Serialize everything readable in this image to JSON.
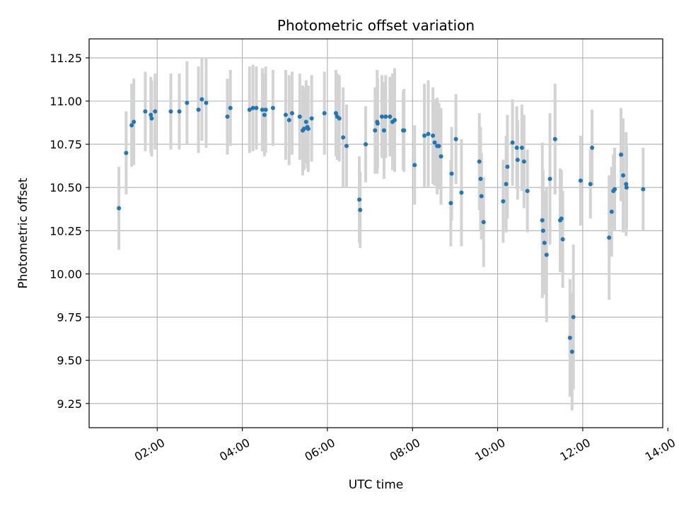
{
  "chart_data": {
    "type": "scatter",
    "title": "Photometric offset variation",
    "xlabel": "UTC time",
    "ylabel": "Photometric offset",
    "xlim": [
      0.4,
      13.88
    ],
    "ylim": [
      9.11,
      11.36
    ],
    "x_ticks": [
      2,
      4,
      6,
      8,
      10,
      12,
      14
    ],
    "x_tick_labels": [
      "02:00",
      "04:00",
      "06:00",
      "08:00",
      "10:00",
      "12:00",
      "14:00"
    ],
    "y_ticks": [
      9.25,
      9.5,
      9.75,
      10.0,
      10.25,
      10.5,
      10.75,
      11.0,
      11.25
    ],
    "y_tick_labels": [
      "9.25",
      "9.50",
      "9.75",
      "10.00",
      "10.25",
      "10.50",
      "10.75",
      "11.00",
      "11.25"
    ],
    "grid": true,
    "colors": {
      "point": "#1f77b4",
      "errorbar": "#d3d3d3",
      "grid": "#b0b0b0"
    },
    "series": [
      {
        "x": [
          1.1,
          1.27,
          1.4,
          1.45,
          1.72,
          1.85,
          1.87,
          1.95,
          2.32,
          2.52,
          2.7,
          2.97,
          3.05,
          3.15,
          3.65,
          3.72,
          4.17,
          4.25,
          4.33,
          4.47,
          4.52,
          4.55,
          4.72,
          5.02,
          5.1,
          5.17,
          5.35,
          5.42,
          5.45,
          5.5,
          5.53,
          5.55,
          5.63,
          5.93,
          6.2,
          6.23,
          6.28,
          6.37,
          6.45,
          6.75,
          6.77,
          6.9,
          7.12,
          7.17,
          7.18,
          7.28,
          7.33,
          7.37,
          7.47,
          7.53,
          7.58,
          7.78,
          7.8,
          8.05,
          8.28,
          8.37,
          8.48,
          8.52,
          8.58,
          8.62,
          8.67,
          8.9,
          8.92,
          9.02,
          9.15,
          9.57,
          9.6,
          9.62,
          9.67,
          10.13,
          10.2,
          10.23,
          10.35,
          10.45,
          10.47,
          10.57,
          10.62,
          10.7,
          11.05,
          11.07,
          11.1,
          11.15,
          11.23,
          11.35,
          11.47,
          11.5,
          11.53,
          11.7,
          11.75,
          11.78,
          11.95,
          12.18,
          12.22,
          12.62,
          12.68,
          12.72,
          12.75,
          12.9,
          12.95,
          13.02,
          13.03,
          13.42
        ],
        "y": [
          10.38,
          10.7,
          10.86,
          10.88,
          10.94,
          10.92,
          10.9,
          10.94,
          10.94,
          10.94,
          10.99,
          10.95,
          11.01,
          10.99,
          10.91,
          10.96,
          10.95,
          10.96,
          10.96,
          10.95,
          10.92,
          10.95,
          10.96,
          10.92,
          10.89,
          10.93,
          10.91,
          10.83,
          10.84,
          10.88,
          10.85,
          10.84,
          10.9,
          10.93,
          10.93,
          10.91,
          10.9,
          10.79,
          10.74,
          10.43,
          10.37,
          10.75,
          10.83,
          10.88,
          10.87,
          10.91,
          10.83,
          10.91,
          10.91,
          10.88,
          10.89,
          10.83,
          10.83,
          10.63,
          10.8,
          10.81,
          10.8,
          10.76,
          10.74,
          10.74,
          10.68,
          10.41,
          10.58,
          10.78,
          10.47,
          10.65,
          10.55,
          10.45,
          10.3,
          10.42,
          10.52,
          10.62,
          10.76,
          10.73,
          10.66,
          10.73,
          10.65,
          10.48,
          10.31,
          10.25,
          10.18,
          10.11,
          10.55,
          10.78,
          10.31,
          10.32,
          10.2,
          9.63,
          9.55,
          9.75,
          10.54,
          10.52,
          10.73,
          10.21,
          10.36,
          10.48,
          10.49,
          10.69,
          10.57,
          10.52,
          10.5,
          10.49
        ],
        "err": [
          0.24,
          0.24,
          0.24,
          0.25,
          0.23,
          0.22,
          0.22,
          0.22,
          0.22,
          0.22,
          0.24,
          0.25,
          0.24,
          0.26,
          0.22,
          0.22,
          0.25,
          0.25,
          0.24,
          0.24,
          0.24,
          0.25,
          0.22,
          0.26,
          0.26,
          0.24,
          0.25,
          0.26,
          0.24,
          0.24,
          0.24,
          0.25,
          0.25,
          0.24,
          0.25,
          0.25,
          0.25,
          0.29,
          0.24,
          0.25,
          0.22,
          0.22,
          0.25,
          0.3,
          0.26,
          0.24,
          0.28,
          0.24,
          0.23,
          0.28,
          0.3,
          0.23,
          0.24,
          0.23,
          0.3,
          0.31,
          0.28,
          0.25,
          0.28,
          0.25,
          0.28,
          0.25,
          0.27,
          0.26,
          0.31,
          0.28,
          0.3,
          0.25,
          0.26,
          0.24,
          0.28,
          0.3,
          0.25,
          0.24,
          0.23,
          0.25,
          0.27,
          0.24,
          0.45,
          0.35,
          0.3,
          0.39,
          0.38,
          0.32,
          0.3,
          0.28,
          0.28,
          0.34,
          0.34,
          0.42,
          0.26,
          0.2,
          0.22,
          0.36,
          0.26,
          0.21,
          0.24,
          0.27,
          0.33,
          0.3,
          0.24,
          0.24
        ]
      }
    ]
  }
}
